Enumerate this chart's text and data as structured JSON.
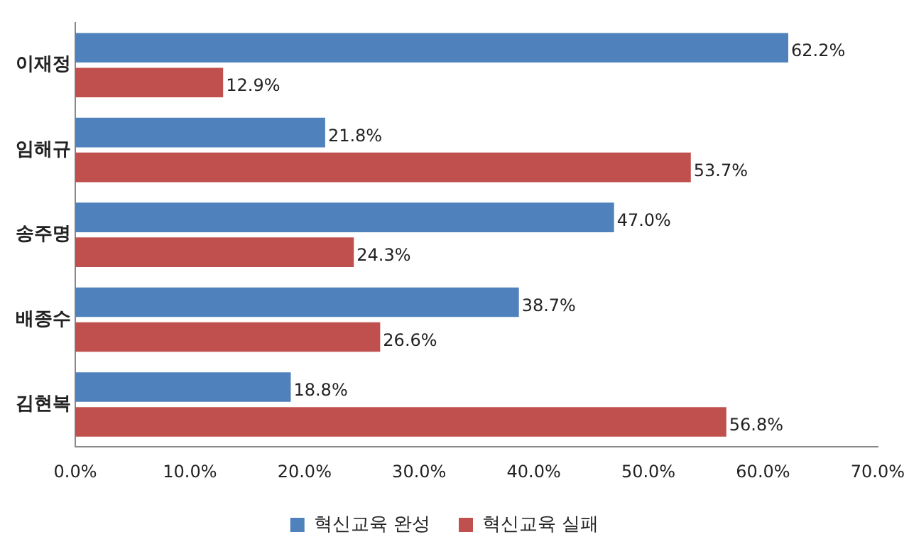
{
  "chart_data": {
    "type": "bar",
    "orientation": "horizontal",
    "categories": [
      "이재정",
      "임해규",
      "송주명",
      "배종수",
      "김현복"
    ],
    "series": [
      {
        "name": "혁신교육 완성",
        "color": "#4f81bd",
        "values": [
          62.2,
          21.8,
          47.0,
          38.7,
          18.8
        ],
        "value_labels": [
          "62.2%",
          "21.8%",
          "47.0%",
          "38.7%",
          "18.8%"
        ]
      },
      {
        "name": "혁신교육 실패",
        "color": "#c0504d",
        "values": [
          12.9,
          53.7,
          24.3,
          26.6,
          56.8
        ],
        "value_labels": [
          "12.9%",
          "53.7%",
          "24.3%",
          "26.6%",
          "56.8%"
        ]
      }
    ],
    "xlim": [
      0,
      70
    ],
    "xticks": [
      {
        "value": 0,
        "label": "0.0%"
      },
      {
        "value": 10,
        "label": "10.0%"
      },
      {
        "value": 20,
        "label": "20.0%"
      },
      {
        "value": 30,
        "label": "30.0%"
      },
      {
        "value": 40,
        "label": "40.0%"
      },
      {
        "value": 50,
        "label": "50.0%"
      },
      {
        "value": 60,
        "label": "60.0%"
      },
      {
        "value": 70,
        "label": "70.0%"
      }
    ],
    "grid": false,
    "legend": "bottom"
  }
}
